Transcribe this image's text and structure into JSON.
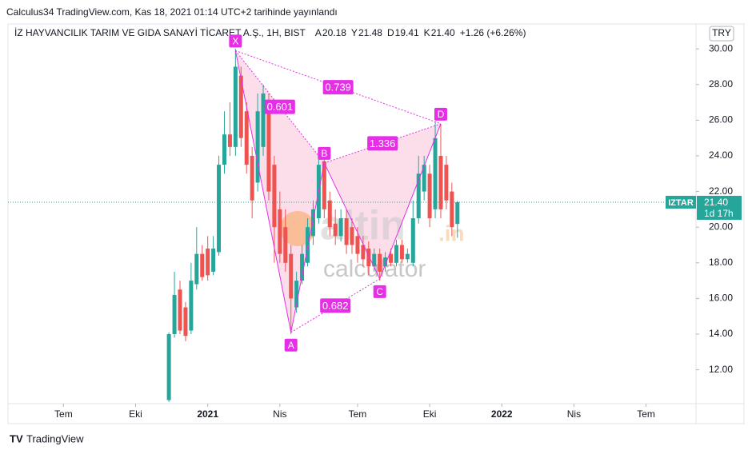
{
  "header": {
    "publisher": "Calculus34 TradingView.com, Kas 18, 2021 01:14 UTC+2 tarihinde yayınlandı",
    "symbol": "İZ HAYVANCILIK TARIM VE GIDA SANAYİ TİCARET A.Ş., 1H, BIST",
    "ohlc": [
      {
        "label": "A",
        "value": "20.18"
      },
      {
        "label": "Y",
        "value": "21.48"
      },
      {
        "label": "D",
        "value": "19.41"
      },
      {
        "label": "K",
        "value": "21.40"
      }
    ],
    "change": "+1.26 (+6.26%)",
    "currency": "TRY"
  },
  "watermark": {
    "brand": "altin",
    "domain": ".in",
    "sub": "calculator"
  },
  "footer": "TradingView",
  "chart_data": {
    "type": "candlestick",
    "x": [
      0,
      1,
      2,
      3,
      4,
      5,
      6,
      7,
      8,
      9,
      10,
      11,
      12,
      13,
      14,
      15,
      16,
      17,
      18,
      19,
      20,
      21,
      22,
      23,
      24,
      25,
      26,
      27,
      28,
      29,
      30,
      31,
      32,
      33,
      34,
      35,
      36,
      37,
      38,
      39,
      40,
      41,
      42,
      43,
      44,
      45,
      46,
      47,
      48,
      49,
      50,
      51,
      52
    ],
    "open": [
      10.3,
      14.0,
      16.5,
      15.5,
      14.2,
      16.8,
      18.5,
      18.8,
      17.5,
      18.6,
      23.5,
      25.2,
      24.5,
      28.5,
      26.5,
      24.0,
      22.5,
      24.5,
      27.0,
      23.5,
      21.0,
      20.0,
      18.5,
      15.5,
      17.0,
      18.0,
      19.5,
      20.5,
      23.7,
      21.5,
      20.2,
      19.5,
      20.5,
      20.0,
      19.5,
      19.0,
      18.8,
      17.8,
      18.5,
      17.8,
      18.5,
      18.0,
      19.0,
      18.2,
      18.0,
      20.5,
      22.0,
      23.0,
      21.0,
      24.0,
      23.5,
      22.0,
      20.18
    ],
    "high": [
      14.1,
      17.5,
      17.0,
      15.8,
      18.0,
      20.0,
      19.0,
      19.5,
      19.5,
      24.0,
      26.5,
      27.0,
      30.0,
      29.0,
      27.0,
      24.5,
      27.5,
      28.0,
      27.5,
      24.0,
      22.0,
      21.0,
      19.0,
      17.5,
      19.0,
      20.5,
      21.5,
      23.8,
      23.8,
      22.0,
      21.0,
      21.0,
      21.0,
      20.5,
      20.0,
      19.5,
      19.2,
      18.8,
      18.8,
      18.6,
      18.8,
      19.3,
      19.3,
      18.8,
      21.5,
      24.0,
      24.0,
      23.5,
      25.9,
      25.8,
      24.0,
      22.5,
      21.48
    ],
    "low": [
      10.2,
      13.8,
      14.0,
      13.6,
      14.0,
      16.5,
      17.0,
      17.0,
      17.3,
      18.4,
      23.0,
      24.0,
      24.0,
      24.5,
      23.0,
      20.5,
      22.0,
      24.0,
      21.5,
      18.0,
      18.0,
      17.5,
      14.0,
      15.2,
      16.8,
      17.8,
      19.0,
      20.2,
      20.5,
      19.5,
      19.0,
      19.2,
      18.5,
      18.5,
      18.0,
      17.8,
      17.3,
      17.5,
      17.0,
      17.5,
      17.8,
      17.8,
      18.0,
      18.0,
      17.8,
      20.2,
      21.5,
      20.0,
      20.5,
      20.5,
      21.0,
      19.5,
      19.41
    ],
    "close": [
      14.0,
      16.2,
      14.2,
      13.9,
      17.0,
      18.5,
      17.2,
      17.3,
      18.8,
      23.5,
      25.2,
      24.5,
      29.0,
      25.0,
      23.5,
      21.5,
      26.5,
      27.5,
      22.0,
      20.0,
      18.5,
      18.0,
      16.0,
      17.0,
      18.5,
      20.0,
      21.0,
      23.5,
      21.0,
      20.0,
      19.5,
      20.5,
      19.0,
      19.0,
      18.5,
      18.2,
      17.8,
      18.5,
      17.5,
      18.3,
      18.0,
      19.0,
      18.2,
      18.5,
      20.5,
      23.0,
      23.5,
      20.5,
      25.0,
      21.0,
      21.5,
      20.0,
      21.4
    ],
    "up_color": "#26a69a",
    "down_color": "#ef5350",
    "xlim": [
      -29,
      95
    ],
    "xticks": [
      {
        "value": -19,
        "label": "Tem"
      },
      {
        "value": -6,
        "label": "Eki"
      },
      {
        "value": 7,
        "label": "2021"
      },
      {
        "value": 20,
        "label": "Nis"
      },
      {
        "value": 34,
        "label": "Tem"
      },
      {
        "value": 47,
        "label": "Eki"
      },
      {
        "value": 60,
        "label": "2022"
      },
      {
        "value": 73,
        "label": "Nis"
      },
      {
        "value": 86,
        "label": "Tem"
      }
    ],
    "ylim": [
      10.1,
      30.5
    ],
    "yticks": [
      {
        "value": 12,
        "label": "12.00"
      },
      {
        "value": 14,
        "label": "14.00"
      },
      {
        "value": 16,
        "label": "16.00"
      },
      {
        "value": 18,
        "label": "18.00"
      },
      {
        "value": 20,
        "label": "20.00"
      },
      {
        "value": 22,
        "label": "22.00"
      },
      {
        "value": 24,
        "label": "24.00"
      },
      {
        "value": 26,
        "label": "26.00"
      },
      {
        "value": 28,
        "label": "28.00"
      },
      {
        "value": 30,
        "label": "30.00"
      }
    ],
    "last_price": {
      "ticker": "IZTAR",
      "value": 21.4,
      "label": "21.40",
      "countdown": "1d 17h",
      "color": "#26a69a"
    },
    "pattern": {
      "color": "#e52ee5",
      "fill": "rgba(242,100,160,0.22)",
      "points": [
        {
          "label": "X",
          "x": 12,
          "y": 29.9
        },
        {
          "label": "A",
          "x": 22,
          "y": 14.1
        },
        {
          "label": "B",
          "x": 28,
          "y": 23.6
        },
        {
          "label": "C",
          "x": 38,
          "y": 17.1
        },
        {
          "label": "D",
          "x": 49,
          "y": 25.8
        }
      ],
      "ratios": {
        "XB": 0.601,
        "XD": 0.739,
        "BD": 1.336,
        "AC": 0.682
      }
    }
  }
}
